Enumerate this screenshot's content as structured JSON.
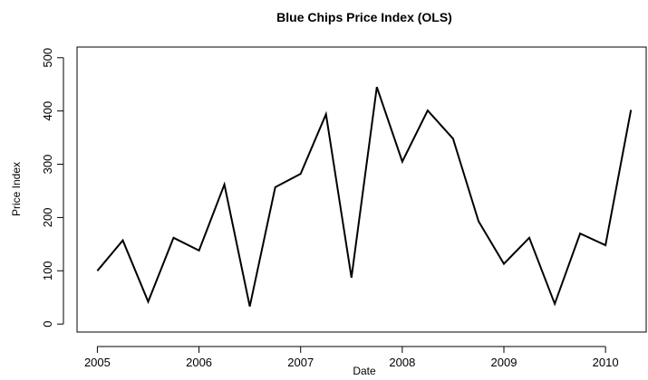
{
  "chart_data": {
    "type": "line",
    "title": "Blue Chips Price Index (OLS)",
    "xlabel": "Date",
    "ylabel": "Price Index",
    "xlim": [
      2004.8,
      2010.4
    ],
    "ylim": [
      -15,
      520
    ],
    "x_ticks": [
      2005,
      2006,
      2007,
      2008,
      2009,
      2010
    ],
    "x_tick_labels": [
      "2005",
      "2006",
      "2007",
      "2008",
      "2009",
      "2010"
    ],
    "y_ticks": [
      0,
      100,
      200,
      300,
      400,
      500
    ],
    "y_tick_labels": [
      "0",
      "100",
      "200",
      "300",
      "400",
      "500"
    ],
    "grid": false,
    "series": [
      {
        "x": [
          2005.0,
          2005.25,
          2005.5,
          2005.75,
          2006.0,
          2006.25,
          2006.5,
          2006.75,
          2007.0,
          2007.25,
          2007.5,
          2007.75,
          2008.0,
          2008.25,
          2008.5,
          2008.75,
          2009.0,
          2009.25,
          2009.5,
          2009.75,
          2010.0,
          2010.25
        ],
        "values": [
          100,
          157,
          42,
          162,
          138,
          262,
          33,
          257,
          282,
          394,
          87,
          445,
          305,
          401,
          348,
          193,
          113,
          162,
          38,
          170,
          148,
          402
        ]
      }
    ]
  }
}
